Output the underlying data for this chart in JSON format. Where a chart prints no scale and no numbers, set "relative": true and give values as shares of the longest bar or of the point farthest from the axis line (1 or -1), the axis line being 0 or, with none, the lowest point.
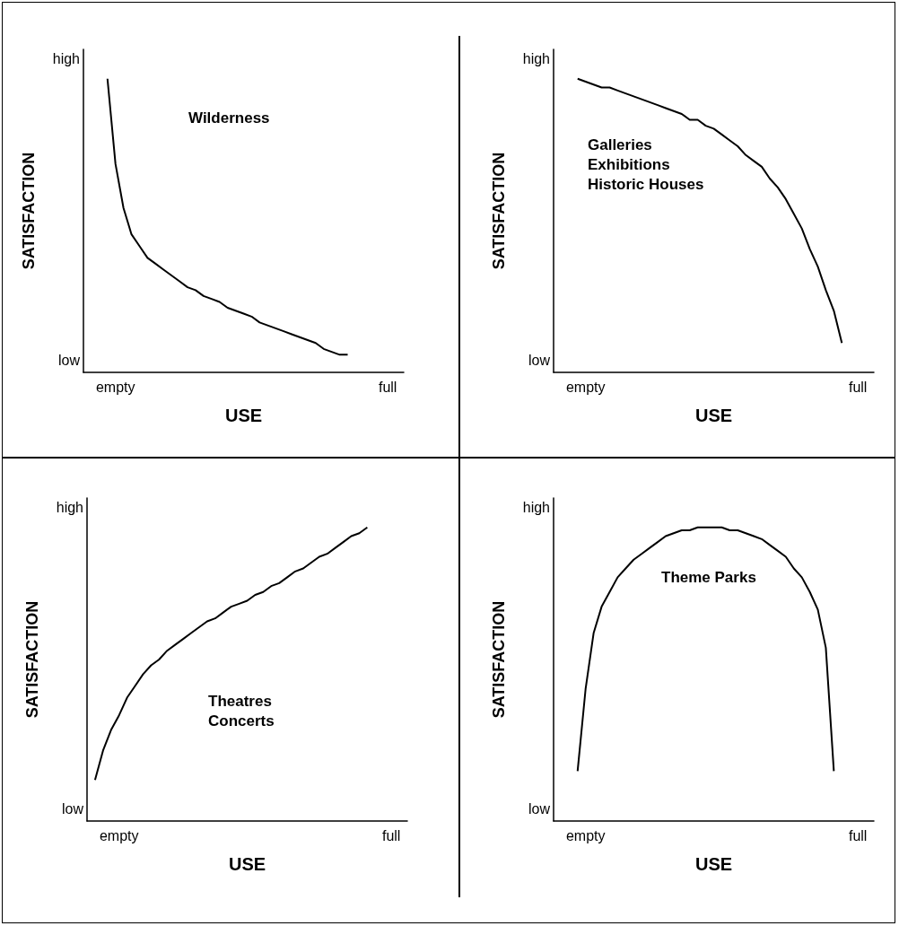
{
  "chart_data": [
    {
      "type": "line",
      "relative": true,
      "xlabel": "USE",
      "ylabel": "SATISFACTION",
      "annotations": [
        "Wilderness",
        "high",
        "low"
      ],
      "marker": "none",
      "categories": [
        null,
        null,
        null,
        null,
        "empty",
        null,
        null,
        null,
        null,
        null,
        null,
        null,
        null,
        null,
        null,
        null,
        null,
        null,
        null,
        null,
        null,
        null,
        null,
        null,
        null,
        null,
        null,
        null,
        null,
        null,
        null,
        null,
        null,
        null,
        null,
        null,
        null,
        null,
        "full",
        null,
        null
      ],
      "series": [
        {
          "color": "#000000",
          "values": [
            null,
            null,
            null,
            1,
            0.71,
            0.56,
            0.47,
            0.43,
            0.39,
            0.37,
            0.35,
            0.33,
            0.31,
            0.29,
            0.28,
            0.26,
            0.25,
            0.24,
            0.22,
            0.21,
            0.2,
            0.19,
            0.17,
            0.16,
            0.15,
            0.14,
            0.13,
            0.12,
            0.11,
            0.1,
            0.08,
            0.07,
            0.06,
            0.06,
            null,
            null,
            null,
            null,
            null,
            null,
            null
          ]
        }
      ]
    },
    {
      "type": "line",
      "relative": true,
      "xlabel": "USE",
      "ylabel": "SATISFACTION",
      "annotations": [
        "Galleries\nExhibitions\nHistoric Houses",
        "high",
        "low"
      ],
      "marker": "none",
      "categories": [
        null,
        null,
        null,
        null,
        "empty",
        null,
        null,
        null,
        null,
        null,
        null,
        null,
        null,
        null,
        null,
        null,
        null,
        null,
        null,
        null,
        null,
        null,
        null,
        null,
        null,
        null,
        null,
        null,
        null,
        null,
        null,
        null,
        null,
        null,
        null,
        null,
        null,
        null,
        "full",
        null,
        null
      ],
      "series": [
        {
          "color": "#000000",
          "values": [
            null,
            null,
            null,
            1,
            0.99,
            0.98,
            0.97,
            0.97,
            0.96,
            0.95,
            0.94,
            0.93,
            0.92,
            0.91,
            0.9,
            0.89,
            0.88,
            0.86,
            0.86,
            0.84,
            0.83,
            0.81,
            0.79,
            0.77,
            0.74,
            0.72,
            0.7,
            0.66,
            0.63,
            0.59,
            0.54,
            0.49,
            0.42,
            0.36,
            0.28,
            0.21,
            0.1,
            null,
            null,
            null,
            null
          ]
        }
      ]
    },
    {
      "type": "line",
      "relative": true,
      "xlabel": "USE",
      "ylabel": "SATISFACTION",
      "annotations": [
        "Theatres\nConcerts",
        "high",
        "low"
      ],
      "marker": "none",
      "categories": [
        null,
        null,
        null,
        null,
        "empty",
        null,
        null,
        null,
        null,
        null,
        null,
        null,
        null,
        null,
        null,
        null,
        null,
        null,
        null,
        null,
        null,
        null,
        null,
        null,
        null,
        null,
        null,
        null,
        null,
        null,
        null,
        null,
        null,
        null,
        null,
        null,
        null,
        null,
        "full",
        null,
        null
      ],
      "series": [
        {
          "color": "#000000",
          "values": [
            null,
            0.14,
            0.24,
            0.31,
            0.36,
            0.42,
            0.46,
            0.5,
            0.53,
            0.55,
            0.58,
            0.6,
            0.62,
            0.64,
            0.66,
            0.68,
            0.69,
            0.71,
            0.73,
            0.74,
            0.75,
            0.77,
            0.78,
            0.8,
            0.81,
            0.83,
            0.85,
            0.86,
            0.88,
            0.9,
            0.91,
            0.93,
            0.95,
            0.97,
            0.98,
            1,
            null,
            null,
            null,
            null,
            null
          ]
        }
      ]
    },
    {
      "type": "line",
      "relative": true,
      "xlabel": "USE",
      "ylabel": "SATISFACTION",
      "annotations": [
        "Theme Parks",
        "high",
        "low"
      ],
      "marker": "none",
      "categories": [
        null,
        null,
        null,
        null,
        "empty",
        null,
        null,
        null,
        null,
        null,
        null,
        null,
        null,
        null,
        null,
        null,
        null,
        null,
        null,
        null,
        null,
        null,
        null,
        null,
        null,
        null,
        null,
        null,
        null,
        null,
        null,
        null,
        null,
        null,
        null,
        null,
        null,
        null,
        "full",
        null,
        null
      ],
      "series": [
        {
          "color": "#000000",
          "values": [
            null,
            null,
            null,
            0.17,
            0.45,
            0.64,
            0.73,
            0.78,
            0.83,
            0.86,
            0.89,
            0.91,
            0.93,
            0.95,
            0.97,
            0.98,
            0.99,
            0.99,
            1,
            1,
            1,
            1,
            0.99,
            0.99,
            0.98,
            0.97,
            0.96,
            0.94,
            0.92,
            0.9,
            0.86,
            0.83,
            0.78,
            0.72,
            0.59,
            0.17,
            null,
            null,
            null,
            null,
            null
          ]
        }
      ]
    }
  ]
}
